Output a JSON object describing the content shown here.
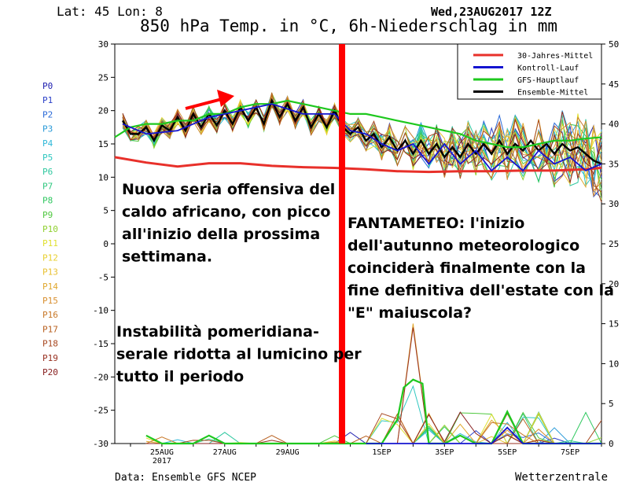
{
  "header": {
    "location": "Lat: 45 Lon: 8",
    "title": "850 hPa Temp. in °C, 6h-Niederschlag in mm",
    "date": "Wed,23AUG2017 12Z"
  },
  "footer": {
    "source": "Data: Ensemble GFS NCEP",
    "brand": "Wetterzentrale"
  },
  "annotations": {
    "left_top": [
      "Nuova seria offensiva del",
      "caldo africano, con picco",
      "all'inizio della prossima",
      "settimana."
    ],
    "left_bottom": [
      "Instabilità pomeridiana-",
      "serale ridotta al lumicino per",
      "tutto il periodo"
    ],
    "right": [
      "FANTAMETEO: l'inizio",
      "dell'autunno meteorologico",
      "coinciderà finalmente con la",
      "fine definitiva dell'estate con la",
      "\"E\" maiuscola?"
    ]
  },
  "colors": {
    "mittel30": "#e8302a",
    "kontroll": "#1414d0",
    "gfs": "#1ec81e",
    "ensemble": "#000000",
    "divider": "#ff0000",
    "arrow": "#ff0000"
  },
  "chart_data": {
    "type": "line",
    "x_axis": {
      "ticks": [
        "25AUG\n2017",
        "27AUG",
        "29AUG",
        "1SEP",
        "3SEP",
        "5SEP",
        "7SEP"
      ],
      "tick_days": [
        1.5,
        3.5,
        5.5,
        8.5,
        10.5,
        12.5,
        14.5
      ],
      "range_days": [
        0,
        15.5
      ]
    },
    "y_left": {
      "label": "850 hPa Temp. in °C",
      "range": [
        -30,
        30
      ],
      "ticks": [
        -30,
        -25,
        -20,
        -15,
        -10,
        -5,
        0,
        5,
        10,
        15,
        20,
        25,
        30
      ]
    },
    "y_right": {
      "label": "6h-Niederschlag in mm",
      "range": [
        0,
        50
      ],
      "ticks": [
        0,
        5,
        10,
        15,
        20,
        25,
        30,
        35,
        40,
        45,
        50
      ]
    },
    "legend": {
      "position": "top-right",
      "entries": [
        {
          "name": "30-Jahres-Mittel",
          "color": "#e8302a"
        },
        {
          "name": "Kontroll-Lauf",
          "color": "#1414d0"
        },
        {
          "name": "GFS-Hauptlauf",
          "color": "#1ec81e"
        },
        {
          "name": "Ensemble-Mittel",
          "color": "#000000"
        }
      ]
    },
    "members": [
      {
        "name": "P0",
        "color": "#2020b0"
      },
      {
        "name": "P1",
        "color": "#2a3fc8"
      },
      {
        "name": "P2",
        "color": "#2a6ad8"
      },
      {
        "name": "P3",
        "color": "#2a9ad8"
      },
      {
        "name": "P4",
        "color": "#30b8d8"
      },
      {
        "name": "P5",
        "color": "#30c8c0"
      },
      {
        "name": "P6",
        "color": "#30c8a0"
      },
      {
        "name": "P7",
        "color": "#30c880"
      },
      {
        "name": "P8",
        "color": "#30c860"
      },
      {
        "name": "P9",
        "color": "#50c840"
      },
      {
        "name": "P10",
        "color": "#90d030"
      },
      {
        "name": "P11",
        "color": "#e0e030"
      },
      {
        "name": "P12",
        "color": "#e8d030"
      },
      {
        "name": "P13",
        "color": "#e8c030"
      },
      {
        "name": "P14",
        "color": "#e0a830"
      },
      {
        "name": "P15",
        "color": "#d89030"
      },
      {
        "name": "P16",
        "color": "#c87828"
      },
      {
        "name": "P17",
        "color": "#b86020"
      },
      {
        "name": "P18",
        "color": "#a84820"
      },
      {
        "name": "P19",
        "color": "#983020"
      },
      {
        "name": "P20",
        "color": "#882020"
      }
    ],
    "series": [
      {
        "name": "30-Jahres-Mittel",
        "axis": "left",
        "x": [
          0,
          1,
          2,
          3,
          4,
          5,
          6,
          7,
          8,
          9,
          10,
          11,
          12,
          13,
          14,
          15,
          15.5
        ],
        "values": [
          13,
          12.2,
          11.6,
          12.1,
          12.1,
          11.7,
          11.5,
          11.4,
          11.2,
          10.9,
          10.8,
          10.9,
          10.9,
          11.0,
          11.0,
          11.2,
          11.4
        ]
      },
      {
        "name": "Ensemble-Mittel",
        "axis": "left",
        "x": [
          0.25,
          0.5,
          0.75,
          1,
          1.25,
          1.5,
          1.75,
          2,
          2.25,
          2.5,
          2.75,
          3,
          3.25,
          3.5,
          3.75,
          4,
          4.25,
          4.5,
          4.75,
          5,
          5.25,
          5.5,
          5.75,
          6,
          6.25,
          6.5,
          6.75,
          7,
          7.25,
          7.5,
          7.75,
          8,
          8.25,
          8.5,
          8.75,
          9,
          9.25,
          9.5,
          9.75,
          10,
          10.25,
          10.5,
          10.75,
          11,
          11.25,
          11.5,
          11.75,
          12,
          12.25,
          12.5,
          12.75,
          13,
          13.25,
          13.5,
          13.75,
          14,
          14.25,
          14.5,
          14.75,
          15,
          15.25,
          15.5
        ],
        "values": [
          18.5,
          16.5,
          16.5,
          17.5,
          15.5,
          17.8,
          17.0,
          19.0,
          17.0,
          19.5,
          17.5,
          19.5,
          17.8,
          20.0,
          18.0,
          20.5,
          18.5,
          20.5,
          18.0,
          21.5,
          19.0,
          21.0,
          18.5,
          20.5,
          17.5,
          19.5,
          17.5,
          20.0,
          17.5,
          16.5,
          17.5,
          15.5,
          16.5,
          14.5,
          16.0,
          14.0,
          15.5,
          13.5,
          15.5,
          13.5,
          15.0,
          13.0,
          14.5,
          13.0,
          15.0,
          13.5,
          15.0,
          13.5,
          15.5,
          13.5,
          15.0,
          14.0,
          15.5,
          14.0,
          15.0,
          13.5,
          15.0,
          14.0,
          14.5,
          13.5,
          12.5,
          12.0
        ]
      },
      {
        "name": "GFS-Hauptlauf",
        "axis": "left",
        "x": [
          0,
          0.5,
          1,
          1.5,
          2,
          2.5,
          3,
          3.5,
          4,
          4.5,
          5,
          5.5,
          6,
          6.5,
          7,
          7.5,
          8,
          8.5,
          9,
          9.5,
          10,
          10.5,
          11,
          11.5,
          12,
          12.5,
          13,
          13.5,
          14,
          14.5,
          15,
          15.5
        ],
        "values": [
          16,
          17.5,
          18,
          18,
          18.5,
          18.5,
          19.5,
          19.5,
          20.5,
          21,
          21,
          21.5,
          21,
          20.5,
          20,
          19.5,
          19.5,
          19,
          18.5,
          18,
          17.5,
          17,
          16.5,
          15.5,
          15,
          14.5,
          14.5,
          15,
          15.5,
          15.5,
          15.8,
          16
        ]
      },
      {
        "name": "Kontroll-Lauf",
        "axis": "left",
        "x": [
          0.25,
          1,
          2,
          3,
          4,
          5,
          6,
          7,
          7.5,
          8,
          8.5,
          9,
          9.5,
          10,
          10.5,
          11,
          11.5,
          12,
          12.5,
          13,
          13.5,
          14,
          14.5,
          15,
          15.5
        ],
        "values": [
          18,
          16.5,
          17,
          19,
          20,
          21,
          19.5,
          19.5,
          17,
          16.5,
          15,
          14,
          15,
          12,
          15,
          12,
          14,
          11,
          13,
          11,
          14,
          12,
          13,
          11,
          12
        ]
      },
      {
        "name": "GFS-Hauptlauf (Niederschlag)",
        "axis": "right",
        "x": [
          1,
          1.5,
          2,
          2.5,
          3,
          3.5,
          4,
          4.5,
          5,
          5.5,
          6,
          6.5,
          7,
          7.5,
          8,
          8.5,
          9,
          9.2,
          9.5,
          9.8,
          10,
          10.5,
          11,
          11.5,
          12,
          12.5,
          13,
          13.5,
          14,
          14.5,
          15,
          15.5
        ],
        "values": [
          1,
          0,
          0,
          0,
          1,
          0,
          0,
          0,
          0,
          0,
          0,
          0,
          0,
          0,
          0,
          0,
          3,
          7,
          8,
          7.5,
          0,
          0,
          1,
          0,
          0,
          4,
          0,
          0,
          0,
          0,
          0,
          0
        ]
      },
      {
        "name": "Kontroll-Lauf (Niederschlag)",
        "axis": "right",
        "x": [
          8,
          9,
          10,
          11,
          12,
          12.5,
          13,
          14,
          15,
          15.5
        ],
        "values": [
          0,
          0,
          0,
          0,
          0,
          2,
          0,
          0,
          0,
          0
        ]
      }
    ]
  }
}
